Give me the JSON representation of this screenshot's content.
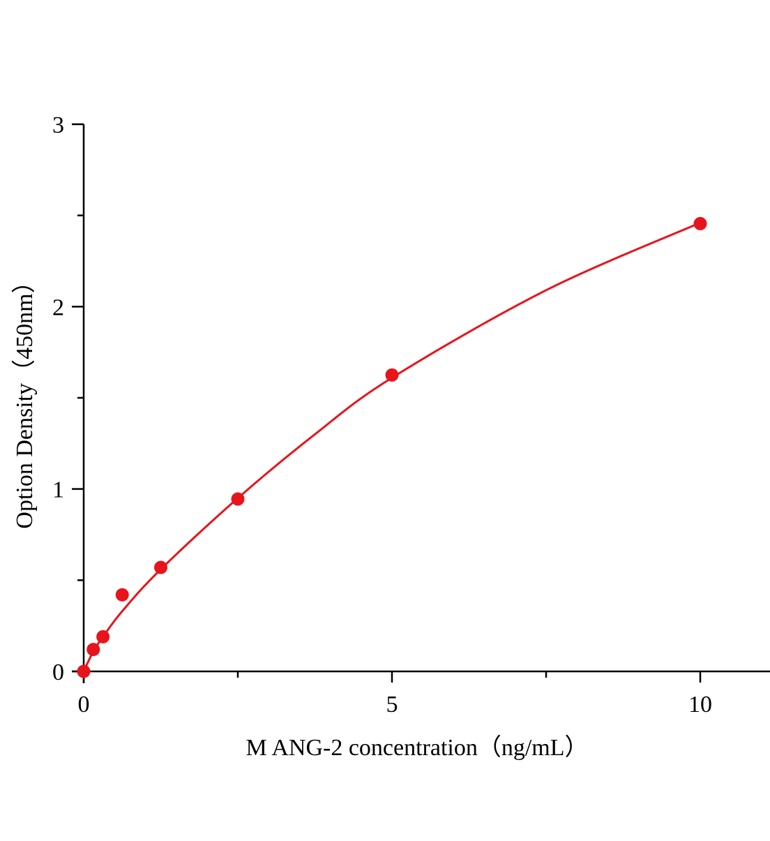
{
  "chart_data": {
    "type": "scatter",
    "title": "",
    "xlabel": "M ANG-2 concentration（ng/mL）",
    "ylabel": "Option Density（450nm）",
    "xlim": [
      0,
      11.15
    ],
    "ylim": [
      0,
      3
    ],
    "x_ticks": [
      0,
      5,
      10
    ],
    "x_minor_ticks": [
      2.5,
      7.5
    ],
    "y_ticks": [
      0,
      1,
      2,
      3
    ],
    "y_minor_ticks": [
      0.5,
      1.5,
      2.5
    ],
    "grid": false,
    "color": "#e8141b",
    "points": [
      {
        "x": 0,
        "y": 0
      },
      {
        "x": 0.156,
        "y": 0.12
      },
      {
        "x": 0.3125,
        "y": 0.19
      },
      {
        "x": 0.625,
        "y": 0.42
      },
      {
        "x": 1.25,
        "y": 0.57
      },
      {
        "x": 2.5,
        "y": 0.945
      },
      {
        "x": 5,
        "y": 1.625
      },
      {
        "x": 10,
        "y": 2.455
      }
    ],
    "fit_curve": [
      [
        0,
        0
      ],
      [
        0.156,
        0.11
      ],
      [
        0.3125,
        0.19
      ],
      [
        0.625,
        0.33
      ],
      [
        1.25,
        0.56
      ],
      [
        2.5,
        0.95
      ],
      [
        3.75,
        1.3
      ],
      [
        5,
        1.61
      ],
      [
        7.5,
        2.09
      ],
      [
        10,
        2.46
      ]
    ]
  }
}
